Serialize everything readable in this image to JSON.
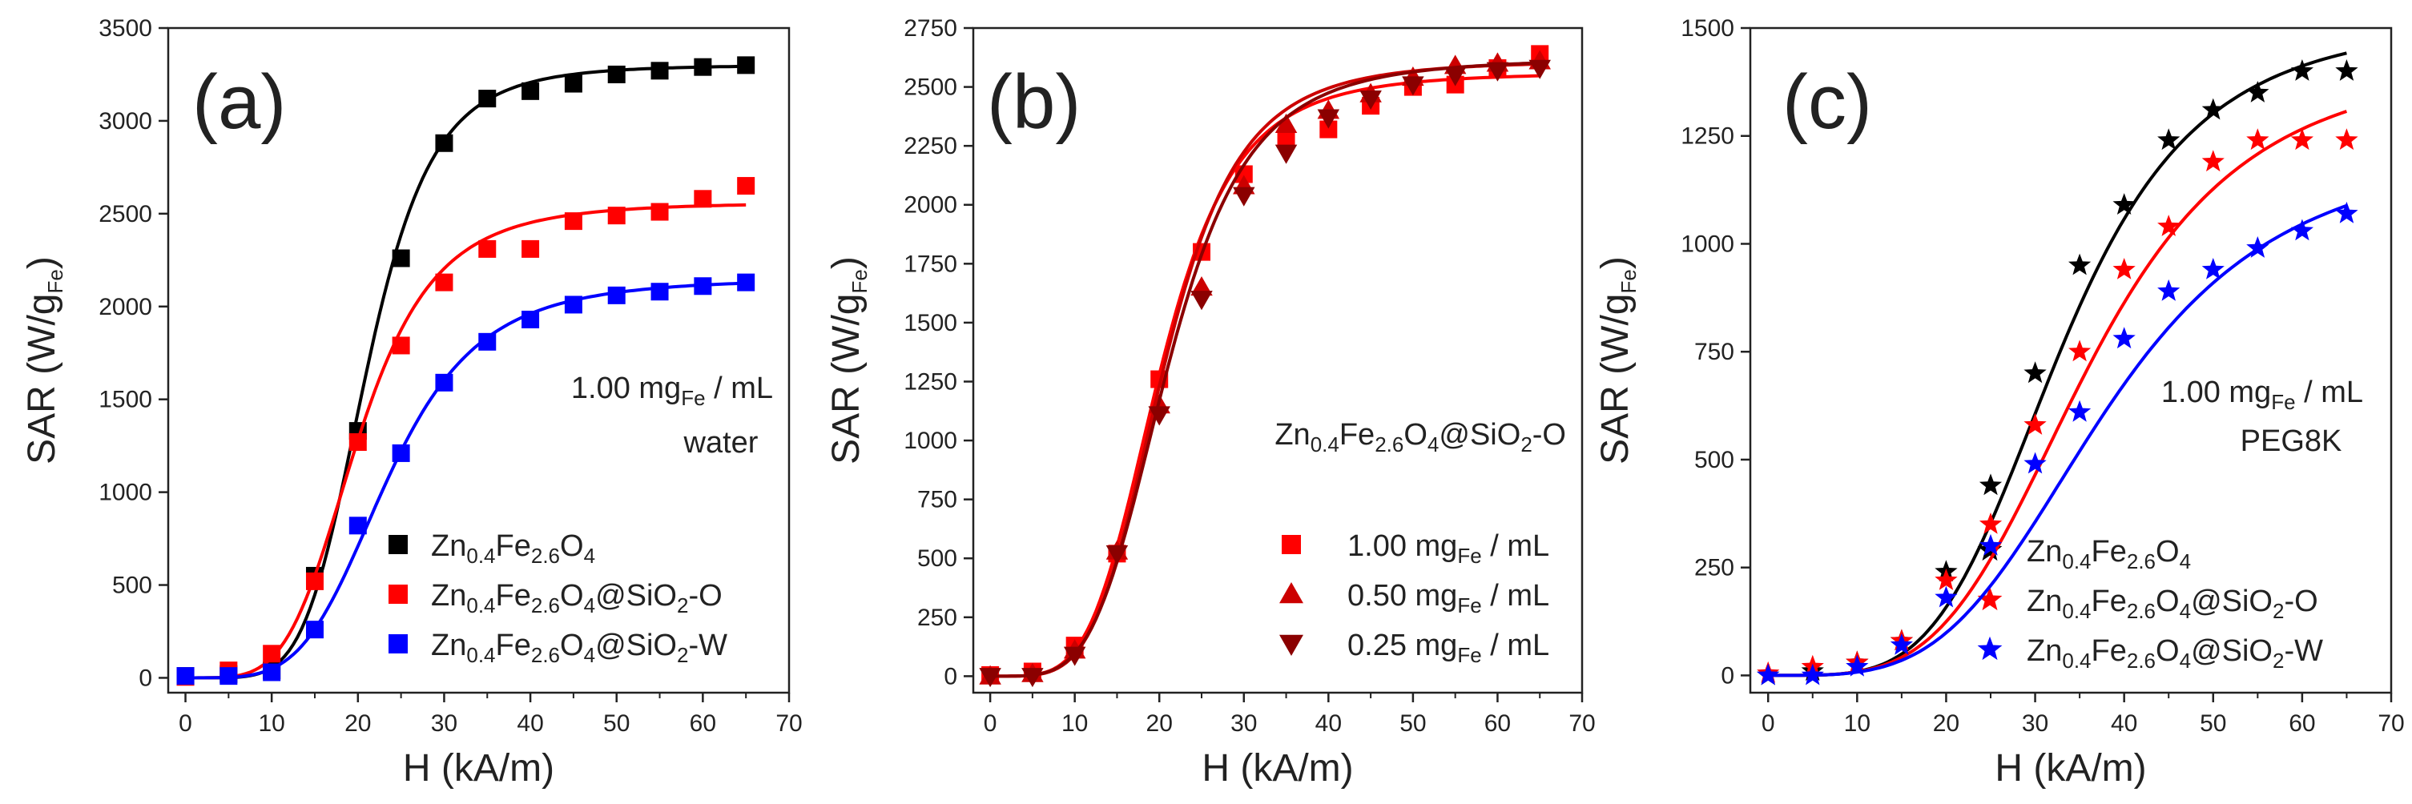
{
  "figure_name": "SAR vs H",
  "chart_data": [
    {
      "type": "line",
      "panel": "(a)",
      "xlabel": "H (kA/m)",
      "ylabel": {
        "main": "SAR (W/g",
        "sub": "Fe",
        "tail": ")"
      },
      "xlim": [
        -2,
        70
      ],
      "ylim": [
        -80,
        3500
      ],
      "xticks": [
        0,
        10,
        20,
        30,
        40,
        50,
        60,
        70
      ],
      "yticks": [
        0,
        500,
        1000,
        1500,
        2000,
        2500,
        3000,
        3500
      ],
      "marker": "square",
      "legend_position": "bottom-right",
      "annotation": [
        {
          "text": [
            {
              "t": "1.00 mg"
            },
            {
              "t": "Fe",
              "sub": true
            },
            {
              "t": " / mL"
            }
          ]
        },
        {
          "text": [
            {
              "t": "water"
            }
          ]
        }
      ],
      "x": [
        0,
        5,
        10,
        15,
        20,
        25,
        30,
        35,
        40,
        45,
        50,
        55,
        60,
        65
      ],
      "series": [
        {
          "name": "Zn0.4Fe2.6O4",
          "label": [
            {
              "t": "Zn"
            },
            {
              "t": "0.4",
              "sub": true
            },
            {
              "t": "Fe"
            },
            {
              "t": "2.6",
              "sub": true
            },
            {
              "t": "O"
            },
            {
              "t": "4",
              "sub": true
            }
          ],
          "color": "#000000",
          "values": [
            10,
            20,
            40,
            550,
            1330,
            2260,
            2880,
            3120,
            3160,
            3200,
            3250,
            3270,
            3290,
            3300
          ],
          "fit": {
            "max": 3300,
            "h0": 21.0,
            "n": 5.5
          }
        },
        {
          "name": "Zn0.4Fe2.6O4@SiO2-O",
          "label": [
            {
              "t": "Zn"
            },
            {
              "t": "0.4",
              "sub": true
            },
            {
              "t": "Fe"
            },
            {
              "t": "2.6",
              "sub": true
            },
            {
              "t": "O"
            },
            {
              "t": "4",
              "sub": true
            },
            {
              "t": "@SiO"
            },
            {
              "t": "2",
              "sub": true
            },
            {
              "t": "-O"
            }
          ],
          "color": "#ff0000",
          "values": [
            5,
            40,
            130,
            520,
            1270,
            1790,
            2130,
            2310,
            2310,
            2460,
            2490,
            2510,
            2580,
            2650
          ],
          "fit": {
            "max": 2560,
            "h0": 20.0,
            "n": 4.5
          }
        },
        {
          "name": "Zn0.4Fe2.6O4@SiO2-W",
          "label": [
            {
              "t": "Zn"
            },
            {
              "t": "0.4",
              "sub": true
            },
            {
              "t": "Fe"
            },
            {
              "t": "2.6",
              "sub": true
            },
            {
              "t": "O"
            },
            {
              "t": "4",
              "sub": true
            },
            {
              "t": "@SiO"
            },
            {
              "t": "2",
              "sub": true
            },
            {
              "t": "-W"
            }
          ],
          "color": "#0000ff",
          "values": [
            10,
            10,
            30,
            260,
            820,
            1210,
            1590,
            1810,
            1930,
            2010,
            2060,
            2080,
            2110,
            2130
          ],
          "fit": {
            "max": 2150,
            "h0": 23.5,
            "n": 4.4
          }
        }
      ]
    },
    {
      "type": "line",
      "panel": "(b)",
      "xlabel": "H (kA/m)",
      "ylabel": {
        "main": "SAR (W/g",
        "sub": "Fe",
        "tail": ")"
      },
      "xlim": [
        -2,
        70
      ],
      "ylim": [
        -70,
        2750
      ],
      "xticks": [
        0,
        10,
        20,
        30,
        40,
        50,
        60,
        70
      ],
      "yticks": [
        0,
        250,
        500,
        750,
        1000,
        1250,
        1500,
        1750,
        2000,
        2250,
        2500,
        2750
      ],
      "legend_position": "bottom-right",
      "annotation": [
        {
          "text": [
            {
              "t": "Zn"
            },
            {
              "t": "0.4",
              "sub": true
            },
            {
              "t": "Fe"
            },
            {
              "t": "2.6",
              "sub": true
            },
            {
              "t": "O"
            },
            {
              "t": "4",
              "sub": true
            },
            {
              "t": "@SiO"
            },
            {
              "t": "2",
              "sub": true
            },
            {
              "t": "-O"
            }
          ]
        }
      ],
      "x": [
        0,
        5,
        10,
        15,
        20,
        25,
        30,
        35,
        40,
        45,
        50,
        55,
        60,
        65
      ],
      "series": [
        {
          "name": "1.00 mgFe / mL",
          "label": [
            {
              "t": "1.00 mg"
            },
            {
              "t": "Fe",
              "sub": true
            },
            {
              "t": " / mL"
            }
          ],
          "color": "#ff0000",
          "marker": "square",
          "values": [
            5,
            20,
            130,
            520,
            1260,
            1800,
            2130,
            2280,
            2320,
            2420,
            2500,
            2510,
            2580,
            2640
          ],
          "fit": {
            "max": 2560,
            "h0": 20.0,
            "n": 4.5
          }
        },
        {
          "name": "0.50 mgFe / mL",
          "label": [
            {
              "t": "0.50 mg"
            },
            {
              "t": "Fe",
              "sub": true
            },
            {
              "t": " / mL"
            }
          ],
          "color": "#cc0000",
          "marker": "triangle-up",
          "values": [
            0,
            10,
            110,
            530,
            1150,
            1650,
            2080,
            2340,
            2400,
            2470,
            2540,
            2590,
            2600,
            2610
          ],
          "fit": {
            "max": 2610,
            "h0": 20.5,
            "n": 4.6
          }
        },
        {
          "name": "0.25 mgFe / mL",
          "label": [
            {
              "t": "0.25 mg"
            },
            {
              "t": "Fe",
              "sub": true
            },
            {
              "t": " / mL"
            }
          ],
          "color": "#8b0000",
          "marker": "triangle-down",
          "values": [
            0,
            0,
            90,
            520,
            1110,
            1600,
            2040,
            2220,
            2370,
            2450,
            2510,
            2550,
            2570,
            2580
          ],
          "fit": {
            "max": 2620,
            "h0": 21.0,
            "n": 4.4
          }
        }
      ]
    },
    {
      "type": "line",
      "panel": "(c)",
      "xlabel": "H (kA/m)",
      "ylabel": {
        "main": "SAR (W/g",
        "sub": "Fe",
        "tail": ")"
      },
      "xlim": [
        -2,
        70
      ],
      "ylim": [
        -40,
        1500
      ],
      "xticks": [
        0,
        10,
        20,
        30,
        40,
        50,
        60,
        70
      ],
      "yticks": [
        0,
        250,
        500,
        750,
        1000,
        1250,
        1500
      ],
      "marker": "star",
      "legend_position": "bottom-right",
      "annotation": [
        {
          "text": [
            {
              "t": "1.00 mg"
            },
            {
              "t": "Fe",
              "sub": true
            },
            {
              "t": " / mL"
            }
          ]
        },
        {
          "text": [
            {
              "t": "PEG8K"
            }
          ]
        }
      ],
      "x": [
        0,
        5,
        10,
        15,
        20,
        25,
        30,
        35,
        40,
        45,
        50,
        55,
        60,
        65
      ],
      "series": [
        {
          "name": "Zn0.4Fe2.6O4",
          "label": [
            {
              "t": "Zn"
            },
            {
              "t": "0.4",
              "sub": true
            },
            {
              "t": "Fe"
            },
            {
              "t": "2.6",
              "sub": true
            },
            {
              "t": "O"
            },
            {
              "t": "4",
              "sub": true
            }
          ],
          "color": "#000000",
          "values": [
            0,
            10,
            30,
            80,
            240,
            440,
            700,
            950,
            1090,
            1240,
            1310,
            1350,
            1400,
            1400
          ],
          "fit": {
            "max": 1520,
            "h0": 33.0,
            "n": 4.3
          }
        },
        {
          "name": "Zn0.4Fe2.6O4@SiO2-O",
          "label": [
            {
              "t": "Zn"
            },
            {
              "t": "0.4",
              "sub": true
            },
            {
              "t": "Fe"
            },
            {
              "t": "2.6",
              "sub": true
            },
            {
              "t": "O"
            },
            {
              "t": "4",
              "sub": true
            },
            {
              "t": "@SiO"
            },
            {
              "t": "2",
              "sub": true
            },
            {
              "t": "-O"
            }
          ],
          "color": "#ff0000",
          "values": [
            5,
            20,
            30,
            80,
            220,
            350,
            580,
            750,
            940,
            1040,
            1190,
            1240,
            1240,
            1240
          ],
          "fit": {
            "max": 1430,
            "h0": 36.0,
            "n": 4.0
          }
        },
        {
          "name": "Zn0.4Fe2.6O4@SiO2-W",
          "label": [
            {
              "t": "Zn"
            },
            {
              "t": "0.4",
              "sub": true
            },
            {
              "t": "Fe"
            },
            {
              "t": "2.6",
              "sub": true
            },
            {
              "t": "O"
            },
            {
              "t": "4",
              "sub": true
            },
            {
              "t": "@SiO"
            },
            {
              "t": "2",
              "sub": true
            },
            {
              "t": "-W"
            }
          ],
          "color": "#0000ff",
          "values": [
            0,
            0,
            20,
            70,
            180,
            300,
            490,
            610,
            780,
            890,
            940,
            990,
            1030,
            1070
          ],
          "fit": {
            "max": 1230,
            "h0": 38.0,
            "n": 3.8
          }
        }
      ]
    }
  ]
}
